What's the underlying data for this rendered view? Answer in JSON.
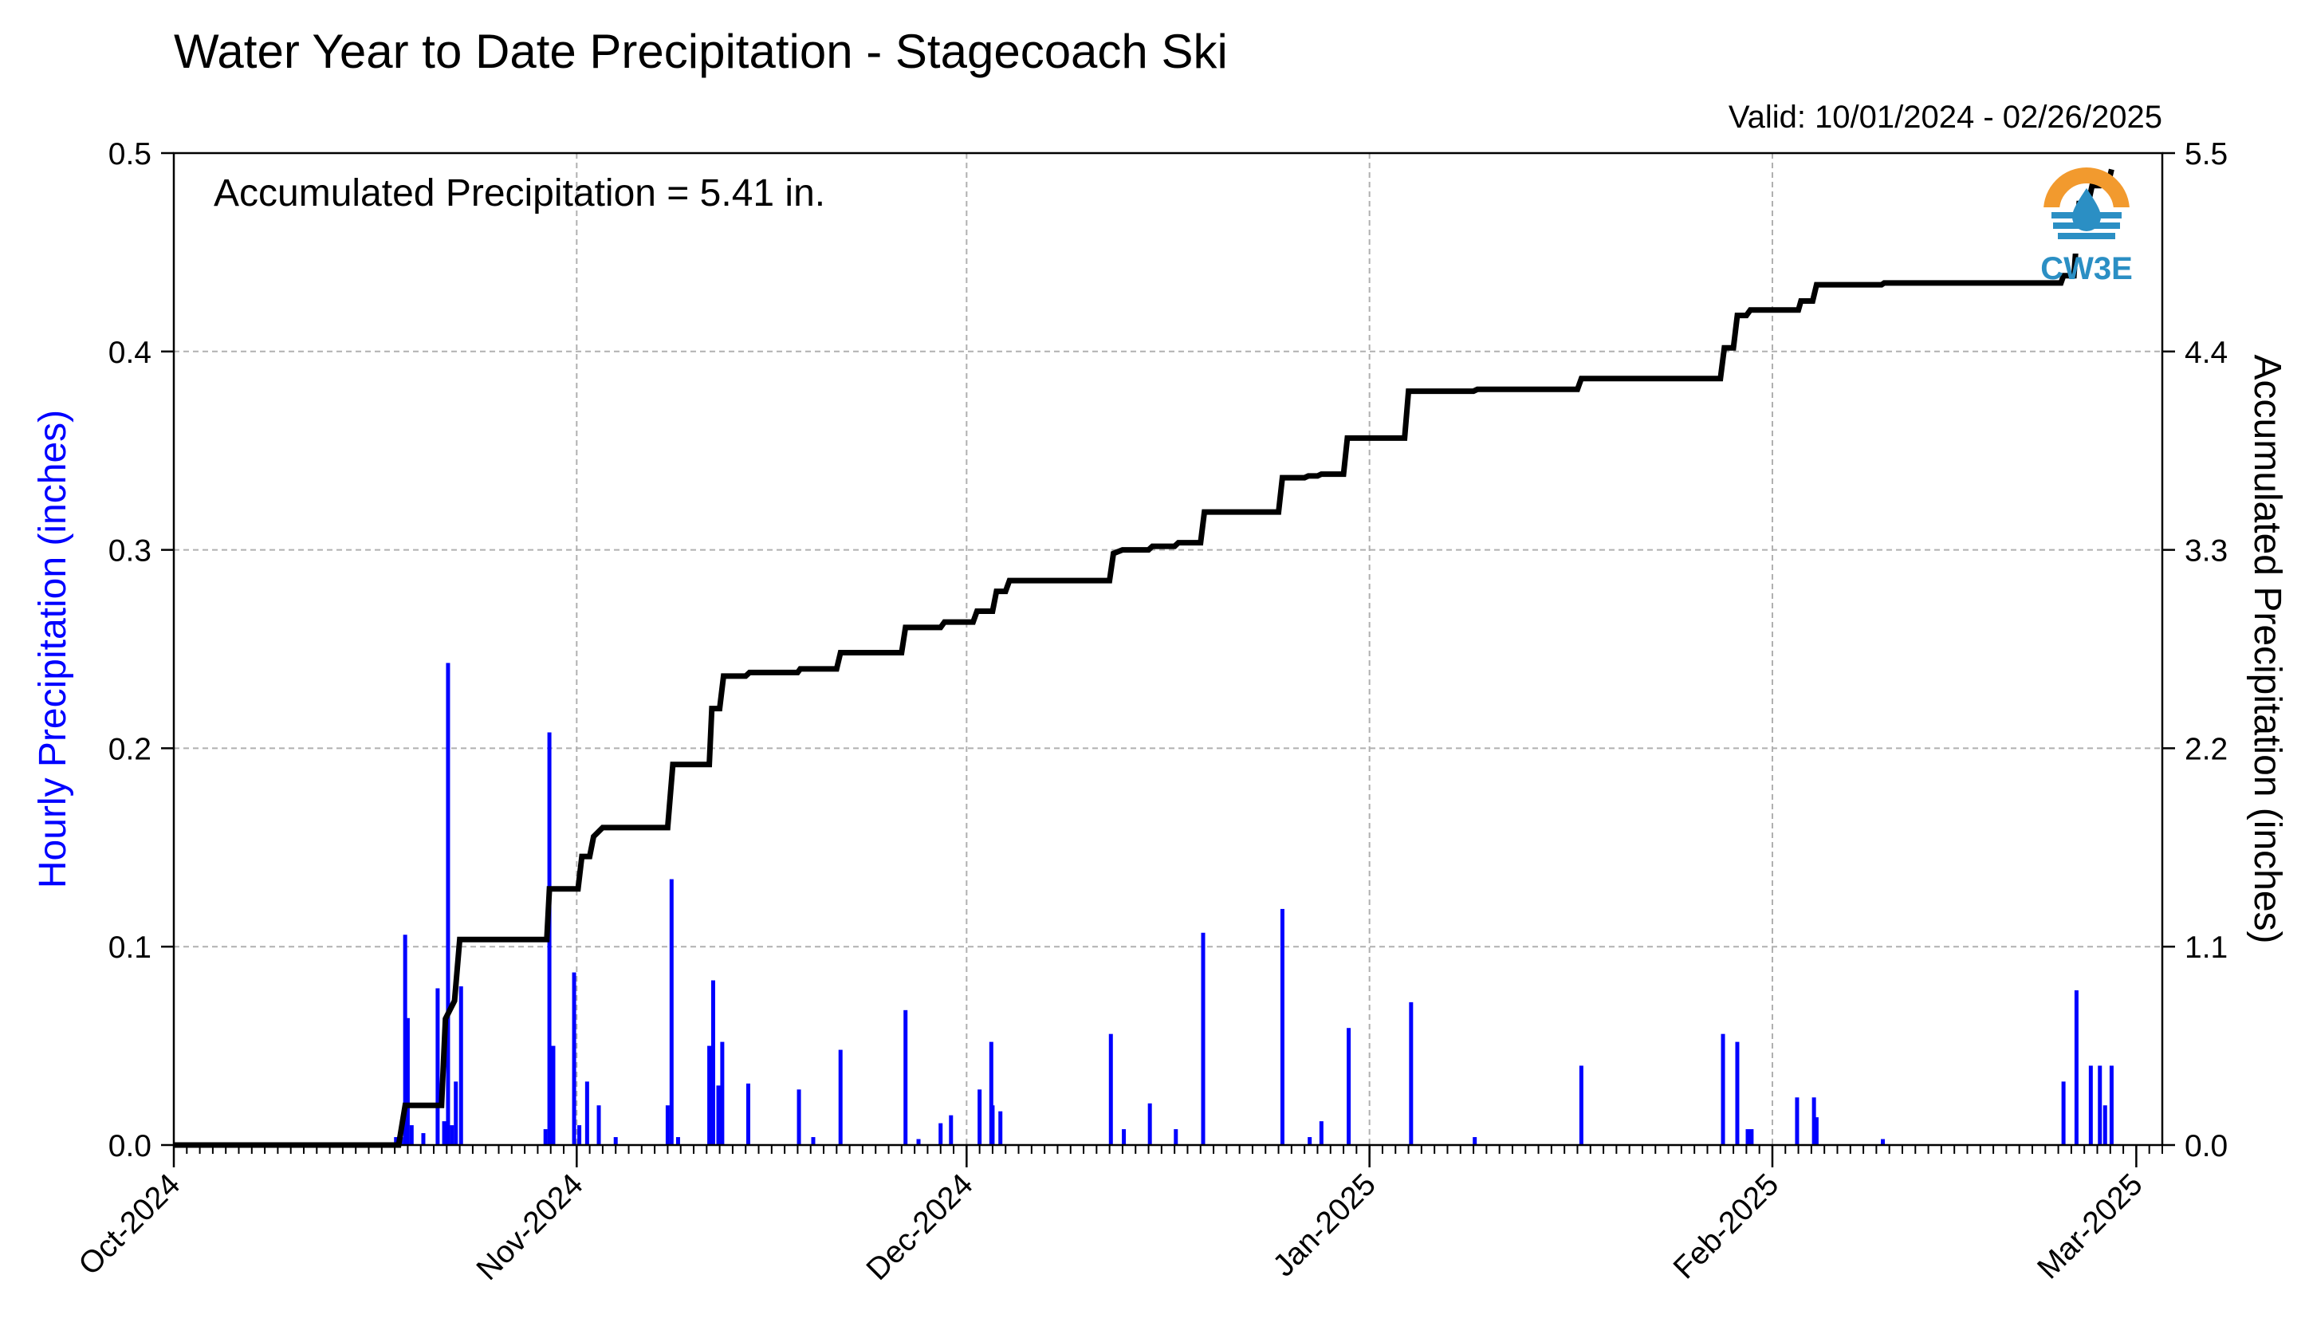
{
  "chart_data": {
    "type": "bar",
    "title": "Water Year to Date Precipitation - Stagecoach Ski",
    "subtitle": "Valid: 10/01/2024 - 02/26/2025",
    "annotation": "Accumulated Precipitation = 5.41 in.",
    "logo_text": "CW3E",
    "ylabel": "Hourly Precipitation (inches)",
    "ylabel_right": "Accumulated Precipitation (inches)",
    "ylim": [
      0,
      0.5
    ],
    "ylim_right": [
      0,
      5.5
    ],
    "y_ticks": [
      "0.0",
      "0.1",
      "0.2",
      "0.3",
      "0.4",
      "0.5"
    ],
    "y_ticks_right": [
      "0.0",
      "1.1",
      "2.2",
      "3.3",
      "4.4",
      "5.5"
    ],
    "x_range_days": [
      0,
      153
    ],
    "x_ticks": [
      {
        "label": "Oct-2024",
        "day": 0
      },
      {
        "label": "Nov-2024",
        "day": 31
      },
      {
        "label": "Dec-2024",
        "day": 61
      },
      {
        "label": "Jan-2025",
        "day": 92
      },
      {
        "label": "Feb-2025",
        "day": 123
      },
      {
        "label": "Mar-2025",
        "day": 151
      }
    ],
    "grid": true,
    "colors": {
      "hourly": "#0000ff",
      "accumulated": "#000000",
      "grid": "#b0b0b0",
      "logo_orange": "#f29a2e",
      "logo_blue": "#2b8fc4"
    },
    "series": [
      {
        "name": "Hourly Precipitation",
        "axis": "left",
        "points": [
          [
            17.1,
            0.004
          ],
          [
            17.5,
            0.004
          ],
          [
            17.8,
            0.106
          ],
          [
            18.0,
            0.064
          ],
          [
            18.3,
            0.01
          ],
          [
            19.2,
            0.006
          ],
          [
            20.3,
            0.079
          ],
          [
            20.8,
            0.012
          ],
          [
            21.1,
            0.243
          ],
          [
            21.4,
            0.01
          ],
          [
            21.7,
            0.032
          ],
          [
            22.1,
            0.08
          ],
          [
            28.6,
            0.008
          ],
          [
            28.9,
            0.208
          ],
          [
            29.2,
            0.05
          ],
          [
            30.8,
            0.087
          ],
          [
            31.2,
            0.01
          ],
          [
            31.8,
            0.032
          ],
          [
            32.7,
            0.02
          ],
          [
            34.0,
            0.004
          ],
          [
            38.0,
            0.02
          ],
          [
            38.3,
            0.134
          ],
          [
            38.8,
            0.004
          ],
          [
            41.2,
            0.05
          ],
          [
            41.5,
            0.083
          ],
          [
            41.9,
            0.03
          ],
          [
            42.2,
            0.052
          ],
          [
            44.2,
            0.031
          ],
          [
            48.1,
            0.028
          ],
          [
            49.2,
            0.004
          ],
          [
            51.3,
            0.048
          ],
          [
            56.3,
            0.068
          ],
          [
            57.3,
            0.003
          ],
          [
            59.0,
            0.011
          ],
          [
            59.8,
            0.015
          ],
          [
            62.0,
            0.028
          ],
          [
            62.9,
            0.052
          ],
          [
            63.0,
            0.02
          ],
          [
            63.6,
            0.017
          ],
          [
            72.1,
            0.056
          ],
          [
            73.1,
            0.008
          ],
          [
            75.1,
            0.021
          ],
          [
            77.1,
            0.008
          ],
          [
            79.2,
            0.107
          ],
          [
            85.3,
            0.119
          ],
          [
            87.4,
            0.004
          ],
          [
            88.3,
            0.012
          ],
          [
            90.4,
            0.059
          ],
          [
            95.2,
            0.072
          ],
          [
            100.1,
            0.004
          ],
          [
            108.3,
            0.04
          ],
          [
            119.2,
            0.056
          ],
          [
            120.3,
            0.052
          ],
          [
            121.1,
            0.008
          ],
          [
            121.4,
            0.008
          ],
          [
            124.9,
            0.024
          ],
          [
            126.2,
            0.024
          ],
          [
            126.4,
            0.014
          ],
          [
            131.5,
            0.003
          ],
          [
            145.4,
            0.032
          ],
          [
            146.4,
            0.078
          ],
          [
            147.5,
            0.04
          ],
          [
            148.2,
            0.04
          ],
          [
            148.6,
            0.02
          ],
          [
            149.1,
            0.04
          ]
        ]
      },
      {
        "name": "Accumulated Precipitation",
        "axis": "right",
        "points": [
          [
            0,
            0
          ],
          [
            17.3,
            0
          ],
          [
            17.8,
            0.22
          ],
          [
            20.6,
            0.22
          ],
          [
            20.9,
            0.7
          ],
          [
            21.6,
            0.8
          ],
          [
            22.0,
            1.14
          ],
          [
            28.7,
            1.14
          ],
          [
            28.9,
            1.42
          ],
          [
            31.1,
            1.42
          ],
          [
            31.4,
            1.6
          ],
          [
            32.0,
            1.6
          ],
          [
            32.3,
            1.71
          ],
          [
            33.0,
            1.76
          ],
          [
            38.0,
            1.76
          ],
          [
            38.4,
            2.11
          ],
          [
            41.2,
            2.11
          ],
          [
            41.4,
            2.42
          ],
          [
            42.0,
            2.42
          ],
          [
            42.3,
            2.6
          ],
          [
            44.0,
            2.6
          ],
          [
            44.3,
            2.62
          ],
          [
            48.0,
            2.62
          ],
          [
            48.2,
            2.64
          ],
          [
            51.0,
            2.64
          ],
          [
            51.3,
            2.73
          ],
          [
            56.0,
            2.73
          ],
          [
            56.3,
            2.87
          ],
          [
            59.0,
            2.87
          ],
          [
            59.3,
            2.9
          ],
          [
            61.5,
            2.9
          ],
          [
            61.8,
            2.96
          ],
          [
            63.0,
            2.96
          ],
          [
            63.3,
            3.07
          ],
          [
            64.0,
            3.07
          ],
          [
            64.3,
            3.13
          ],
          [
            72.0,
            3.13
          ],
          [
            72.3,
            3.28
          ],
          [
            73.0,
            3.3
          ],
          [
            75.0,
            3.3
          ],
          [
            75.3,
            3.32
          ],
          [
            77.0,
            3.32
          ],
          [
            77.3,
            3.34
          ],
          [
            79.0,
            3.34
          ],
          [
            79.3,
            3.51
          ],
          [
            85.0,
            3.51
          ],
          [
            85.3,
            3.7
          ],
          [
            87.0,
            3.7
          ],
          [
            87.3,
            3.71
          ],
          [
            88.0,
            3.71
          ],
          [
            88.3,
            3.72
          ],
          [
            90.0,
            3.72
          ],
          [
            90.3,
            3.92
          ],
          [
            94.7,
            3.92
          ],
          [
            95.0,
            4.18
          ],
          [
            100.0,
            4.18
          ],
          [
            100.3,
            4.19
          ],
          [
            108.0,
            4.19
          ],
          [
            108.3,
            4.25
          ],
          [
            119.0,
            4.25
          ],
          [
            119.3,
            4.42
          ],
          [
            120.0,
            4.42
          ],
          [
            120.3,
            4.6
          ],
          [
            121.0,
            4.6
          ],
          [
            121.3,
            4.63
          ],
          [
            123.0,
            4.63
          ],
          [
            125.0,
            4.63
          ],
          [
            125.2,
            4.68
          ],
          [
            126.1,
            4.68
          ],
          [
            126.4,
            4.77
          ],
          [
            131.4,
            4.77
          ],
          [
            131.6,
            4.78
          ],
          [
            145.2,
            4.78
          ],
          [
            145.4,
            4.82
          ],
          [
            146.2,
            4.82
          ],
          [
            146.6,
            5.22
          ],
          [
            147.3,
            5.22
          ],
          [
            147.6,
            5.32
          ],
          [
            148.2,
            5.32
          ],
          [
            148.5,
            5.35
          ],
          [
            148.9,
            5.35
          ],
          [
            149.1,
            5.41
          ]
        ]
      }
    ]
  }
}
